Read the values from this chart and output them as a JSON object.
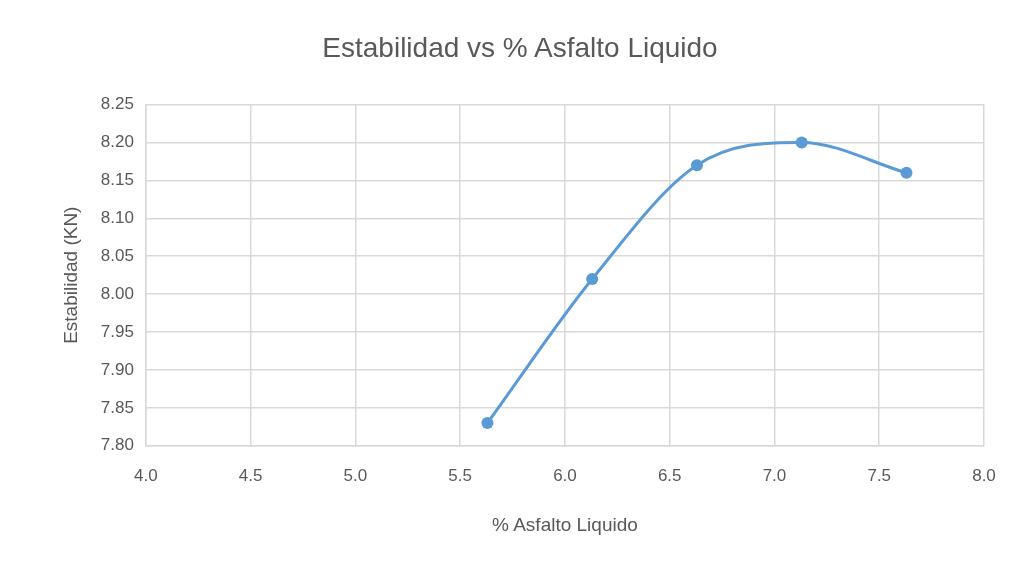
{
  "chart_data": {
    "type": "line",
    "title": "Estabilidad vs % Asfalto Liquido",
    "xlabel": "% Asfalto Liquido",
    "ylabel": "Estabilidad (KN)",
    "x": [
      5.63,
      6.13,
      6.63,
      7.13,
      7.63
    ],
    "series": [
      {
        "color": "#5b9bd5",
        "values": [
          7.83,
          8.02,
          8.17,
          8.2,
          8.16
        ]
      }
    ],
    "xlim": [
      4,
      8
    ],
    "xticks": [
      {
        "value": 4,
        "label": "4.0"
      },
      4.5,
      {
        "value": 5,
        "label": "5.0"
      },
      5.5,
      {
        "value": 6,
        "label": "6.0"
      },
      6.5,
      {
        "value": 7,
        "label": "7.0"
      },
      7.5,
      {
        "value": 8,
        "label": "8.0"
      }
    ],
    "ylim": [
      7.8,
      8.25
    ],
    "yticks": [
      {
        "value": 7.8,
        "label": "7.80"
      },
      7.85,
      {
        "value": 7.9,
        "label": "7.90"
      },
      7.95,
      {
        "value": 8,
        "label": "8.00"
      },
      8.05,
      {
        "value": 8.1,
        "label": "8.10"
      },
      8.15,
      {
        "value": 8.2,
        "label": "8.20"
      },
      8.25
    ],
    "grid": true,
    "marker": "circle",
    "line_style": "solid"
  }
}
